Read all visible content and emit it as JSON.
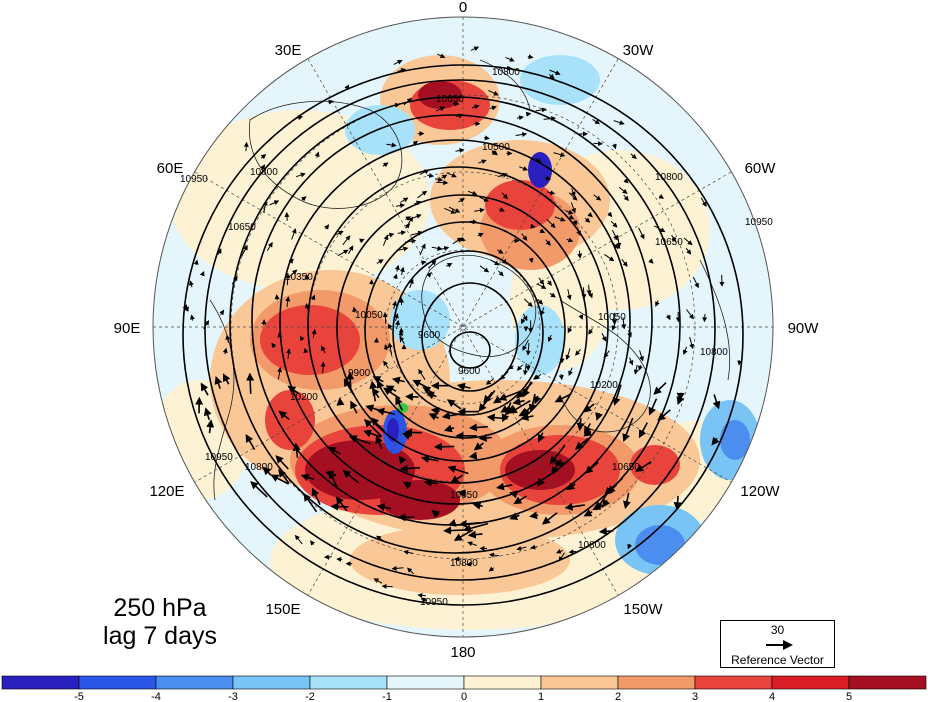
{
  "title": {
    "line1": "250 hPa",
    "line2": "lag 7 days"
  },
  "longitude_labels": [
    "0",
    "30W",
    "60W",
    "90W",
    "120W",
    "150W",
    "180",
    "150E",
    "120E",
    "90E",
    "60E",
    "30E"
  ],
  "contour_labels": [
    "10800",
    "10650",
    "10500",
    "10350",
    "10200",
    "10050",
    "9900",
    "9600",
    "10950"
  ],
  "reference_vector": {
    "magnitude": "30",
    "label": "Reference Vector"
  },
  "colorbar": {
    "ticks": [
      "-5",
      "-4",
      "-3",
      "-2",
      "-1",
      "0",
      "1",
      "2",
      "3",
      "4",
      "5"
    ],
    "colors": [
      "#2a1fbf",
      "#2b55e6",
      "#4b8ef0",
      "#79c3f5",
      "#a8e2fa",
      "#e4f6fb",
      "#fdf2d4",
      "#f9c896",
      "#f29a6a",
      "#e8443c",
      "#d91c26",
      "#a50f22"
    ]
  }
}
